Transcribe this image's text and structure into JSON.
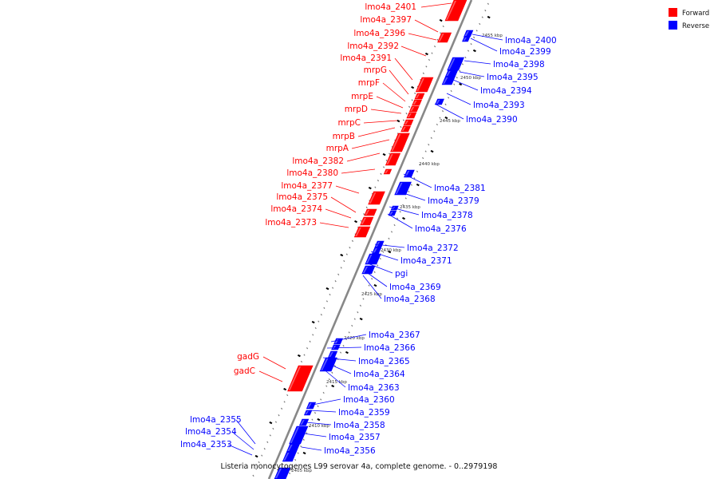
{
  "caption": "Listeria monocytogenes L99 serovar 4a, complete genome. - 0..2979198",
  "legend": [
    {
      "label": "Forward",
      "color": "#ff0000"
    },
    {
      "label": "Reverse",
      "color": "#0000ff"
    }
  ],
  "colors": {
    "forward": "#ff0000",
    "reverse": "#0000ff",
    "backbone": "#888888"
  },
  "kbp_ticks": [
    "2455 kbp",
    "2450 kbp",
    "2445 kbp",
    "2440 kbp",
    "2435 kbp",
    "2430 kbp",
    "2425 kbp",
    "2420 kbp",
    "2415 kbp",
    "2410 kbp",
    "2405 kbp"
  ],
  "genes_forward": [
    "lmo4a_2401",
    "lmo4a_2397",
    "lmo4a_2396",
    "lmo4a_2392",
    "lmo4a_2391",
    "mrpG",
    "mrpF",
    "mrpE",
    "mrpD",
    "mrpC",
    "mrpB",
    "mrpA",
    "lmo4a_2382",
    "lmo4a_2380",
    "lmo4a_2377",
    "lmo4a_2375",
    "lmo4a_2374",
    "lmo4a_2373",
    "gadG",
    "gadC"
  ],
  "genes_reverse": [
    "lmo4a_2400",
    "lmo4a_2399",
    "lmo4a_2398",
    "lmo4a_2395",
    "lmo4a_2394",
    "lmo4a_2393",
    "lmo4a_2390",
    "lmo4a_2381",
    "lmo4a_2379",
    "lmo4a_2378",
    "lmo4a_2376",
    "lmo4a_2372",
    "lmo4a_2371",
    "pgi",
    "lmo4a_2369",
    "lmo4a_2368",
    "lmo4a_2367",
    "lmo4a_2366",
    "lmo4a_2365",
    "lmo4a_2364",
    "lmo4a_2363",
    "lmo4a_2360",
    "lmo4a_2359",
    "lmo4a_2358",
    "lmo4a_2357",
    "lmo4a_2356",
    "lmo4a_2355",
    "lmo4a_2354",
    "lmo4a_2353"
  ]
}
